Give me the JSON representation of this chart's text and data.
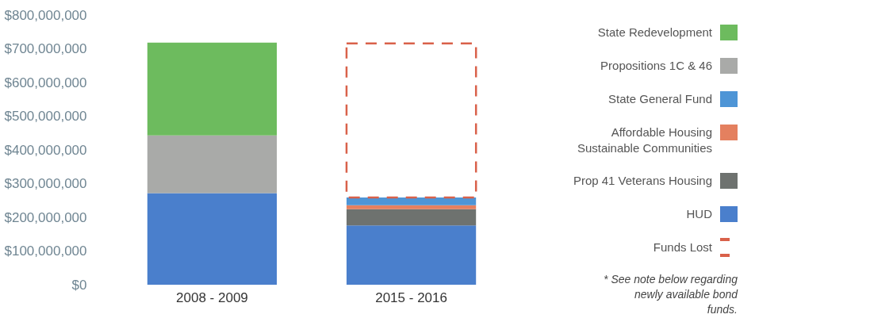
{
  "chart_data": {
    "type": "bar",
    "stacked": true,
    "categories": [
      "2008 - 2009",
      "2015 - 2016"
    ],
    "series": [
      {
        "name": "HUD",
        "color": "#4a7fcc",
        "values": [
          272000000,
          176000000
        ]
      },
      {
        "name": "Prop 41 Veterans Housing",
        "color": "#6e726f",
        "values": [
          null,
          48000000
        ]
      },
      {
        "name": "Affordable Housing Sustainable Communities",
        "color": "#e4805f",
        "values": [
          null,
          12000000
        ]
      },
      {
        "name": "State General Fund",
        "color": "#4e95d6",
        "values": [
          null,
          23000000
        ]
      },
      {
        "name": "Propositions 1C & 46",
        "color": "#a9aaa8",
        "values": [
          171000000,
          null
        ]
      },
      {
        "name": "State Redevelopment",
        "color": "#6dbb5e",
        "values": [
          275000000,
          null
        ]
      },
      {
        "name": "Funds Lost",
        "color": "#d9614a",
        "values": [
          null,
          457000000
        ],
        "line_style": "dashed"
      }
    ],
    "ylim": [
      0,
      800000000
    ],
    "yticks": [
      {
        "value": 0,
        "label": "$0"
      },
      {
        "value": 100000000,
        "label": "$100,000,000"
      },
      {
        "value": 200000000,
        "label": "$200,000,000"
      },
      {
        "value": 300000000,
        "label": "$300,000,000"
      },
      {
        "value": 400000000,
        "label": "$400,000,000"
      },
      {
        "value": 500000000,
        "label": "$500,000,000"
      },
      {
        "value": 600000000,
        "label": "$600,000,000"
      },
      {
        "value": 700000000,
        "label": "$700,000,000"
      },
      {
        "value": 800000000,
        "label": "$800,000,000"
      }
    ],
    "grid": false,
    "legend": "right",
    "annotations": [
      "* See note below regarding newly available bond funds."
    ]
  }
}
